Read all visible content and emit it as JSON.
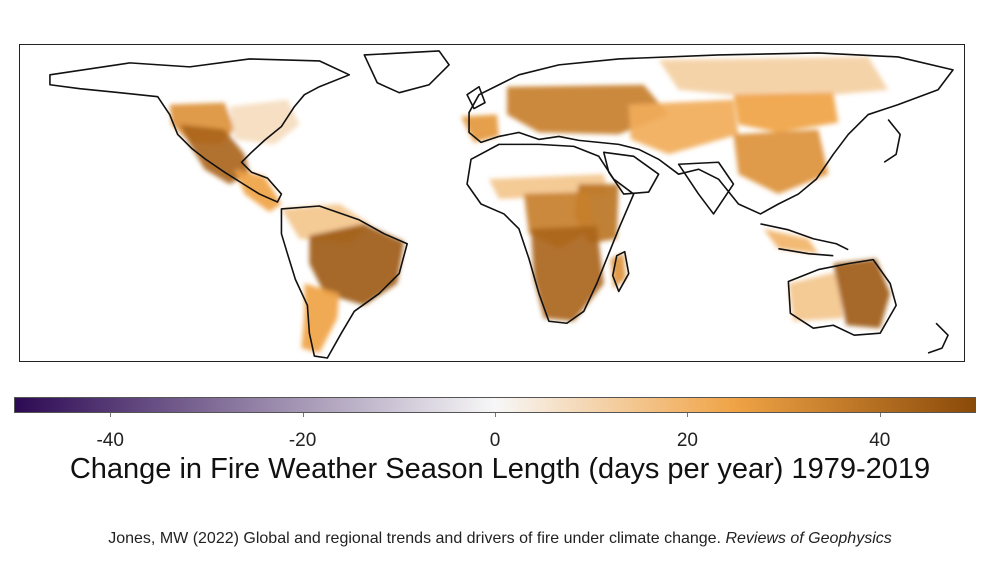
{
  "map": {
    "type": "choropleth world map",
    "variable": "Change in fire weather season length",
    "scale_min": -50,
    "scale_max": 50,
    "colors": {
      "negative_end": "#2d0a54",
      "neutral": "#f7f7f7",
      "positive_mid": "#f0a345",
      "positive_end": "#8a4a08",
      "coastline": "#111111"
    },
    "regions": [
      {
        "name": "Western United States",
        "value": 30
      },
      {
        "name": "Mexico",
        "value": 42
      },
      {
        "name": "Eastern United States",
        "value": 8
      },
      {
        "name": "Central America",
        "value": 25
      },
      {
        "name": "Northern South America",
        "value": 15
      },
      {
        "name": "Brazil",
        "value": 45
      },
      {
        "name": "Southern South America",
        "value": 25
      },
      {
        "name": "Iberia",
        "value": 28
      },
      {
        "name": "Eastern Europe and Black Sea",
        "value": 35
      },
      {
        "name": "Central Asia",
        "value": 22
      },
      {
        "name": "Siberia",
        "value": 12
      },
      {
        "name": "Mongolia and Northern China",
        "value": 25
      },
      {
        "name": "Southern China",
        "value": 30
      },
      {
        "name": "Sahel",
        "value": 15
      },
      {
        "name": "East Africa",
        "value": 38
      },
      {
        "name": "Central Africa",
        "value": 35
      },
      {
        "name": "Southern Africa",
        "value": 42
      },
      {
        "name": "Madagascar",
        "value": 30
      },
      {
        "name": "Indonesia",
        "value": 20
      },
      {
        "name": "Western Australia",
        "value": 15
      },
      {
        "name": "Eastern Australia",
        "value": 45
      },
      {
        "name": "Sahara",
        "value": 0
      },
      {
        "name": "Arabia",
        "value": 0
      }
    ]
  },
  "colorbar": {
    "ticks": [
      {
        "value": -40,
        "label": "-40"
      },
      {
        "value": -20,
        "label": "-20"
      },
      {
        "value": 0,
        "label": "0"
      },
      {
        "value": 20,
        "label": "20"
      },
      {
        "value": 40,
        "label": "40"
      }
    ]
  },
  "caption": "Change in Fire Weather Season Length (days per year) 1979-2019",
  "citation": {
    "text": "Jones, MW (2022) Global and regional trends and drivers of fire under climate change.",
    "journal": "Reviews of Geophysics"
  }
}
